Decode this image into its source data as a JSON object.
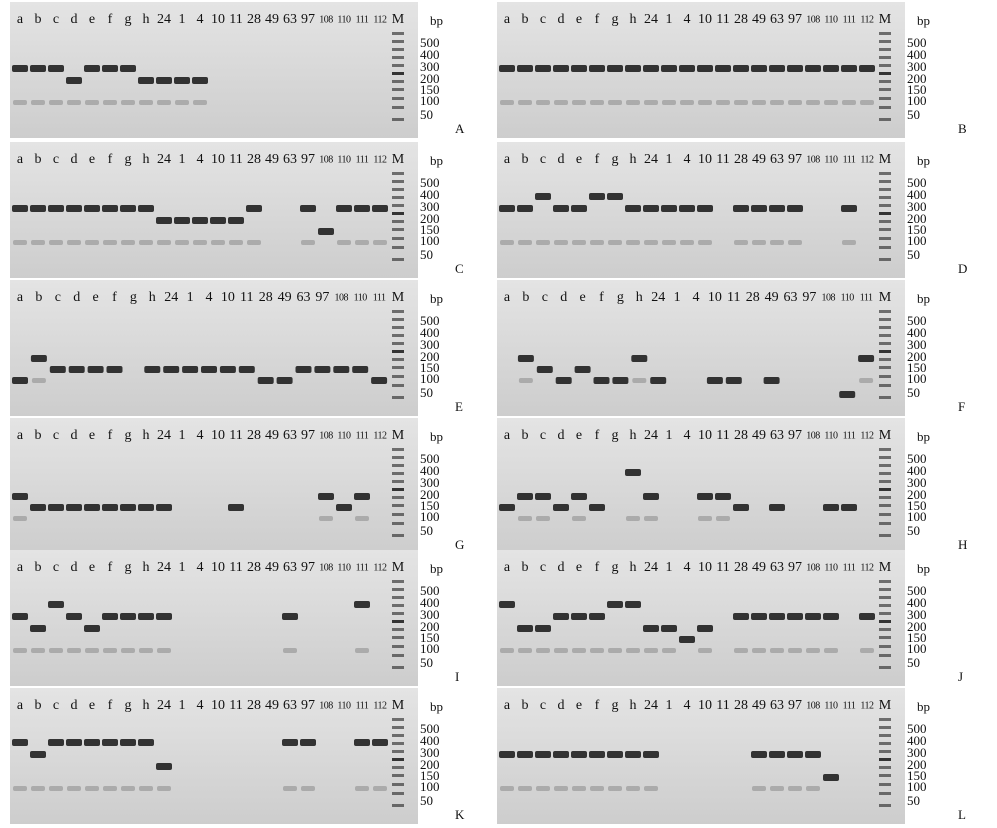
{
  "panels": [
    {
      "letter": "A",
      "unit": "bp",
      "lanes": [
        "a",
        "b",
        "c",
        "d",
        "e",
        "f",
        "g",
        "h",
        "24",
        "1",
        "4",
        "10",
        "11",
        "28",
        "49",
        "63",
        "97",
        "108",
        "110",
        "111",
        "112",
        "M"
      ],
      "markers": [
        500,
        400,
        300,
        200,
        150,
        100,
        50
      ]
    },
    {
      "letter": "B",
      "unit": "bp",
      "lanes": [
        "a",
        "b",
        "c",
        "d",
        "e",
        "f",
        "g",
        "h",
        "24",
        "1",
        "4",
        "10",
        "11",
        "28",
        "49",
        "63",
        "97",
        "108",
        "110",
        "111",
        "112",
        "M"
      ],
      "markers": [
        500,
        400,
        300,
        200,
        150,
        100,
        50
      ]
    },
    {
      "letter": "C",
      "unit": "bp",
      "lanes": [
        "a",
        "b",
        "c",
        "d",
        "e",
        "f",
        "g",
        "h",
        "24",
        "1",
        "4",
        "10",
        "11",
        "28",
        "49",
        "63",
        "97",
        "108",
        "110",
        "111",
        "112",
        "M"
      ],
      "markers": [
        500,
        400,
        300,
        200,
        150,
        100,
        50
      ]
    },
    {
      "letter": "D",
      "unit": "bp",
      "lanes": [
        "a",
        "b",
        "c",
        "d",
        "e",
        "f",
        "g",
        "h",
        "24",
        "1",
        "4",
        "10",
        "11",
        "28",
        "49",
        "63",
        "97",
        "108",
        "110",
        "111",
        "112",
        "M"
      ],
      "markers": [
        500,
        400,
        300,
        200,
        150,
        100,
        50
      ]
    },
    {
      "letter": "E",
      "unit": "bp",
      "lanes": [
        "a",
        "b",
        "c",
        "d",
        "e",
        "f",
        "g",
        "h",
        "24",
        "1",
        "4",
        "10",
        "11",
        "28",
        "49",
        "63",
        "97",
        "108",
        "110",
        "111",
        "M"
      ],
      "markers": [
        500,
        400,
        300,
        200,
        150,
        100,
        50
      ]
    },
    {
      "letter": "F",
      "unit": "bp",
      "lanes": [
        "a",
        "b",
        "c",
        "d",
        "e",
        "f",
        "g",
        "h",
        "24",
        "1",
        "4",
        "10",
        "11",
        "28",
        "49",
        "63",
        "97",
        "108",
        "110",
        "111",
        "M"
      ],
      "markers": [
        500,
        400,
        300,
        200,
        150,
        100,
        50
      ]
    },
    {
      "letter": "G",
      "unit": "bp",
      "lanes": [
        "a",
        "b",
        "c",
        "d",
        "e",
        "f",
        "g",
        "h",
        "24",
        "1",
        "4",
        "10",
        "11",
        "28",
        "49",
        "63",
        "97",
        "108",
        "110",
        "111",
        "112",
        "M"
      ],
      "markers": [
        500,
        400,
        300,
        200,
        150,
        100,
        50
      ]
    },
    {
      "letter": "H",
      "unit": "bp",
      "lanes": [
        "a",
        "b",
        "c",
        "d",
        "e",
        "f",
        "g",
        "h",
        "24",
        "1",
        "4",
        "10",
        "11",
        "28",
        "49",
        "63",
        "97",
        "108",
        "110",
        "111",
        "112",
        "M"
      ],
      "markers": [
        500,
        400,
        300,
        200,
        150,
        100,
        50
      ]
    },
    {
      "letter": "I",
      "unit": "bp",
      "lanes": [
        "a",
        "b",
        "c",
        "d",
        "e",
        "f",
        "g",
        "h",
        "24",
        "1",
        "4",
        "10",
        "11",
        "28",
        "49",
        "63",
        "97",
        "108",
        "110",
        "111",
        "112",
        "M"
      ],
      "markers": [
        500,
        400,
        300,
        200,
        150,
        100,
        50
      ]
    },
    {
      "letter": "J",
      "unit": "bp",
      "lanes": [
        "a",
        "b",
        "c",
        "d",
        "e",
        "f",
        "g",
        "h",
        "24",
        "1",
        "4",
        "10",
        "11",
        "28",
        "49",
        "63",
        "97",
        "108",
        "110",
        "111",
        "112",
        "M"
      ],
      "markers": [
        500,
        400,
        300,
        200,
        150,
        100,
        50
      ]
    },
    {
      "letter": "K",
      "unit": "bp",
      "lanes": [
        "a",
        "b",
        "c",
        "d",
        "e",
        "f",
        "g",
        "h",
        "24",
        "1",
        "4",
        "10",
        "11",
        "28",
        "49",
        "63",
        "97",
        "108",
        "110",
        "111",
        "112",
        "M"
      ],
      "markers": [
        500,
        400,
        300,
        200,
        150,
        100,
        50
      ]
    },
    {
      "letter": "L",
      "unit": "bp",
      "lanes": [
        "a",
        "b",
        "c",
        "d",
        "e",
        "f",
        "g",
        "h",
        "24",
        "1",
        "4",
        "10",
        "11",
        "28",
        "49",
        "63",
        "97",
        "108",
        "110",
        "111",
        "112",
        "M"
      ],
      "markers": [
        500,
        400,
        300,
        200,
        150,
        100,
        50
      ]
    }
  ]
}
